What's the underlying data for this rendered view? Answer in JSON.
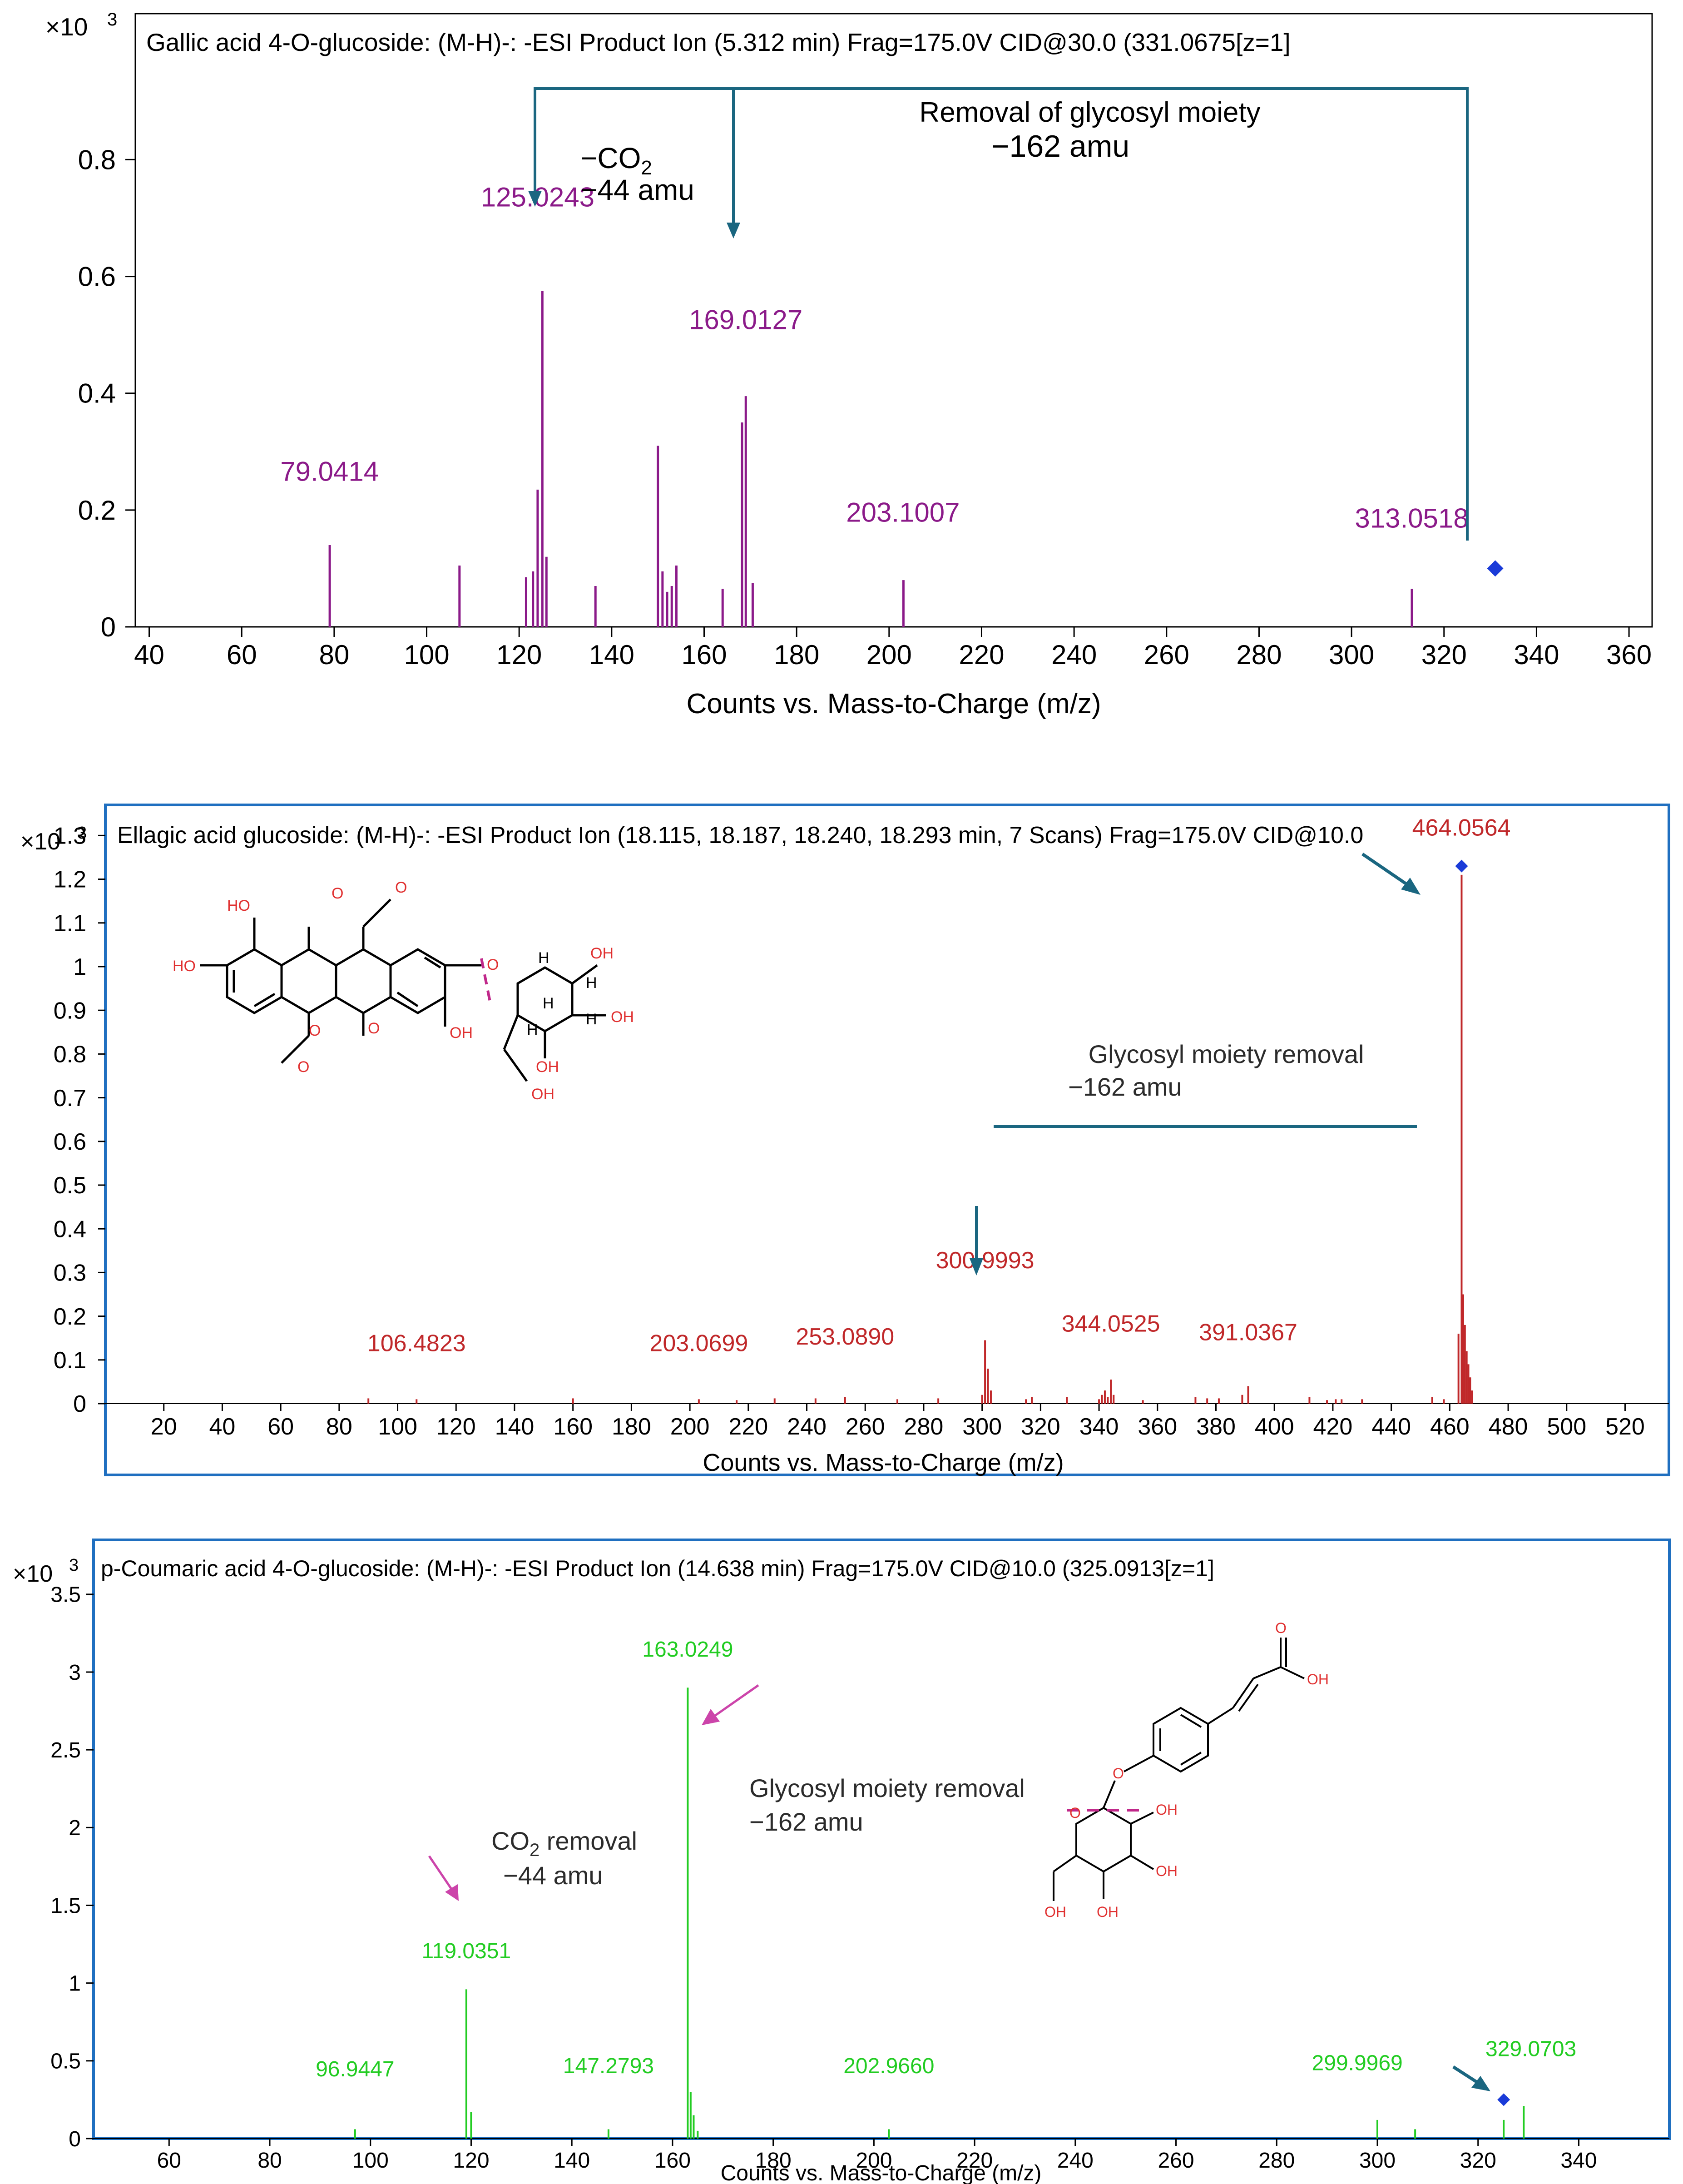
{
  "chart_data": [
    {
      "type": "bar",
      "title": "Gallic acid 4-O-glucoside: (M-H)-: -ESI Product Ion (5.312 min) Frag=175.0V CID@30.0 (331.0675[z=1]",
      "xlabel": "Counts vs. Mass-to-Charge (m/z)",
      "ylabel_multiplier": "×10",
      "ylabel_exp": "3",
      "xlim": [
        37,
        365
      ],
      "ylim": [
        0,
        1.05
      ],
      "xticks": [
        40,
        60,
        80,
        100,
        120,
        140,
        160,
        180,
        200,
        220,
        240,
        260,
        280,
        300,
        320,
        340,
        360
      ],
      "yticks": [
        0,
        0.2,
        0.4,
        0.6,
        0.8
      ],
      "ytick_labels": [
        "0",
        "0.2",
        "0.4",
        "0.6",
        "0.8"
      ],
      "peak_color": "#8b1a89",
      "arrow_color": "#1a6680",
      "peaks": [
        {
          "mz": 79.04,
          "intensity": 0.14
        },
        {
          "mz": 107.1,
          "intensity": 0.105
        },
        {
          "mz": 121.5,
          "intensity": 0.085
        },
        {
          "mz": 123.0,
          "intensity": 0.095
        },
        {
          "mz": 124.0,
          "intensity": 0.235
        },
        {
          "mz": 125.02,
          "intensity": 0.575
        },
        {
          "mz": 125.9,
          "intensity": 0.12
        },
        {
          "mz": 136.5,
          "intensity": 0.07
        },
        {
          "mz": 150.0,
          "intensity": 0.31
        },
        {
          "mz": 151.0,
          "intensity": 0.095
        },
        {
          "mz": 152.0,
          "intensity": 0.06
        },
        {
          "mz": 153.0,
          "intensity": 0.07
        },
        {
          "mz": 154.0,
          "intensity": 0.105
        },
        {
          "mz": 164.0,
          "intensity": 0.065
        },
        {
          "mz": 168.2,
          "intensity": 0.35
        },
        {
          "mz": 169.01,
          "intensity": 0.395
        },
        {
          "mz": 170.5,
          "intensity": 0.075
        },
        {
          "mz": 203.1,
          "intensity": 0.08
        },
        {
          "mz": 313.05,
          "intensity": 0.065
        }
      ],
      "labels": [
        {
          "text": "125.0243",
          "mz": 124.0,
          "intensity": 0.72
        },
        {
          "text": "169.0127",
          "mz": 169.0,
          "intensity": 0.51
        },
        {
          "text": "79.0414",
          "mz": 79.0,
          "intensity": 0.25
        },
        {
          "text": "203.1007",
          "mz": 203.0,
          "intensity": 0.18
        },
        {
          "text": "313.0518",
          "mz": 313.0,
          "intensity": 0.17
        }
      ],
      "precursor": {
        "mz": 331.07,
        "intensity": 0.1
      },
      "annotations": {
        "glycosyl_line1": "Removal of glycosyl moiety",
        "glycosyl_line2": "−162 amu",
        "co2_line1": "−CO",
        "co2_sub": "2",
        "co2_line2": "−44 amu"
      }
    },
    {
      "type": "bar",
      "title": "Ellagic acid glucoside: (M-H)-: -ESI Product Ion (18.115, 18.187, 18.240, 18.293      min, 7 Scans) Frag=175.0V CID@10.0",
      "xlabel": "Counts vs. Mass-to-Charge (m/z)",
      "ylabel_multiplier": "×10",
      "ylabel_exp": "3",
      "xlim": [
        0,
        535
      ],
      "ylim": [
        0,
        1.37
      ],
      "xticks": [
        20,
        40,
        60,
        80,
        100,
        120,
        140,
        160,
        180,
        200,
        220,
        240,
        260,
        280,
        300,
        320,
        340,
        360,
        380,
        400,
        420,
        440,
        460,
        480,
        500,
        520
      ],
      "yticks": [
        0,
        0.1,
        0.2,
        0.3,
        0.4,
        0.5,
        0.6,
        0.7,
        0.8,
        0.9,
        1,
        1.1,
        1.2,
        1.3
      ],
      "ytick_labels": [
        "0",
        "0.1",
        "0.2",
        "0.3",
        "0.4",
        "0.5",
        "0.6",
        "0.7",
        "0.8",
        "0.9",
        "1",
        "1.1",
        "1.2",
        "1.3"
      ],
      "peak_color": "#c0282a",
      "arrow_color": "#1a6680",
      "peaks": [
        {
          "mz": 90.0,
          "intensity": 0.012
        },
        {
          "mz": 106.48,
          "intensity": 0.01
        },
        {
          "mz": 160.0,
          "intensity": 0.012
        },
        {
          "mz": 203.07,
          "intensity": 0.01
        },
        {
          "mz": 216.0,
          "intensity": 0.008
        },
        {
          "mz": 229.0,
          "intensity": 0.012
        },
        {
          "mz": 243.0,
          "intensity": 0.012
        },
        {
          "mz": 253.09,
          "intensity": 0.015
        },
        {
          "mz": 271.0,
          "intensity": 0.01
        },
        {
          "mz": 285.0,
          "intensity": 0.012
        },
        {
          "mz": 300.0,
          "intensity": 0.02
        },
        {
          "mz": 301.0,
          "intensity": 0.145
        },
        {
          "mz": 302.0,
          "intensity": 0.08
        },
        {
          "mz": 303.0,
          "intensity": 0.03
        },
        {
          "mz": 315.0,
          "intensity": 0.01
        },
        {
          "mz": 317.0,
          "intensity": 0.015
        },
        {
          "mz": 329.0,
          "intensity": 0.015
        },
        {
          "mz": 340.0,
          "intensity": 0.01
        },
        {
          "mz": 341.0,
          "intensity": 0.02
        },
        {
          "mz": 342.0,
          "intensity": 0.03
        },
        {
          "mz": 343.0,
          "intensity": 0.015
        },
        {
          "mz": 344.05,
          "intensity": 0.055
        },
        {
          "mz": 345.0,
          "intensity": 0.02
        },
        {
          "mz": 355.0,
          "intensity": 0.008
        },
        {
          "mz": 373.0,
          "intensity": 0.015
        },
        {
          "mz": 377.0,
          "intensity": 0.012
        },
        {
          "mz": 381.0,
          "intensity": 0.012
        },
        {
          "mz": 389.0,
          "intensity": 0.02
        },
        {
          "mz": 391.04,
          "intensity": 0.04
        },
        {
          "mz": 412.0,
          "intensity": 0.015
        },
        {
          "mz": 418.0,
          "intensity": 0.008
        },
        {
          "mz": 421.0,
          "intensity": 0.01
        },
        {
          "mz": 423.0,
          "intensity": 0.01
        },
        {
          "mz": 430.0,
          "intensity": 0.01
        },
        {
          "mz": 454.0,
          "intensity": 0.015
        },
        {
          "mz": 458.0,
          "intensity": 0.01
        },
        {
          "mz": 463.0,
          "intensity": 0.16
        },
        {
          "mz": 464.06,
          "intensity": 1.21
        },
        {
          "mz": 464.6,
          "intensity": 0.25
        },
        {
          "mz": 465.2,
          "intensity": 0.18
        },
        {
          "mz": 465.8,
          "intensity": 0.12
        },
        {
          "mz": 466.4,
          "intensity": 0.09
        },
        {
          "mz": 467.0,
          "intensity": 0.06
        },
        {
          "mz": 467.6,
          "intensity": 0.03
        }
      ],
      "labels": [
        {
          "text": "464.0564",
          "mz": 464.0,
          "intensity": 1.3
        },
        {
          "text": "300.9993",
          "mz": 301.0,
          "intensity": 0.31
        },
        {
          "text": "106.4823",
          "mz": 106.48,
          "intensity": 0.12
        },
        {
          "text": "203.0699",
          "mz": 203.07,
          "intensity": 0.12
        },
        {
          "text": "253.0890",
          "mz": 253.09,
          "intensity": 0.135
        },
        {
          "text": "344.0525",
          "mz": 344.05,
          "intensity": 0.165
        },
        {
          "text": "391.0367",
          "mz": 391.04,
          "intensity": 0.145
        }
      ],
      "precursor": {
        "mz": 464.06,
        "intensity": 1.23
      },
      "annotations": {
        "glycosyl_line1": "Glycosyl  moiety removal",
        "glycosyl_line2": "−162 amu"
      },
      "structure_labels": [
        "HO",
        "HO",
        "O",
        "O",
        "OH",
        "O",
        "O",
        "O",
        "O",
        "H",
        "OH",
        "H",
        "OH",
        "H",
        "H",
        "H",
        "OH",
        "OH"
      ]
    },
    {
      "type": "bar",
      "title": "p-Coumaric acid 4-O-glucoside:  (M-H)-: -ESI  Product  Ion  (14.638 min) Frag=175.0V  CID@10.0 (325.0913[z=1]",
      "xlabel": "Counts vs. Mass-to-Charge (m/z)",
      "ylabel_multiplier": "×10",
      "ylabel_exp": "3",
      "xlim": [
        45,
        358
      ],
      "ylim": [
        0,
        3.85
      ],
      "xticks": [
        60,
        80,
        100,
        120,
        140,
        160,
        180,
        200,
        220,
        240,
        260,
        280,
        300,
        320,
        340
      ],
      "yticks": [
        0,
        0.5,
        1,
        1.5,
        2,
        2.5,
        3,
        3.5
      ],
      "ytick_labels": [
        "0",
        "0.5",
        "1",
        "1.5",
        "2",
        "2.5",
        "3",
        "3.5"
      ],
      "peak_color": "#22cc22",
      "arrow_color": "#cc44aa",
      "peaks": [
        {
          "mz": 96.94,
          "intensity": 0.06
        },
        {
          "mz": 119.04,
          "intensity": 0.96
        },
        {
          "mz": 120.0,
          "intensity": 0.17
        },
        {
          "mz": 147.28,
          "intensity": 0.06
        },
        {
          "mz": 163.02,
          "intensity": 2.9
        },
        {
          "mz": 163.6,
          "intensity": 0.3
        },
        {
          "mz": 164.2,
          "intensity": 0.15
        },
        {
          "mz": 165.0,
          "intensity": 0.05
        },
        {
          "mz": 202.97,
          "intensity": 0.06
        },
        {
          "mz": 300.0,
          "intensity": 0.12
        },
        {
          "mz": 307.5,
          "intensity": 0.06
        },
        {
          "mz": 325.09,
          "intensity": 0.12
        },
        {
          "mz": 329.07,
          "intensity": 0.21
        }
      ],
      "labels": [
        {
          "text": "163.0249",
          "mz": 163.02,
          "intensity": 3.1
        },
        {
          "text": "119.0351",
          "mz": 119.04,
          "intensity": 1.16
        },
        {
          "text": "96.9447",
          "mz": 96.94,
          "intensity": 0.4
        },
        {
          "text": "147.2793",
          "mz": 147.28,
          "intensity": 0.42
        },
        {
          "text": "202.9660",
          "mz": 202.97,
          "intensity": 0.42
        },
        {
          "text": "299.9969",
          "mz": 296.0,
          "intensity": 0.44
        },
        {
          "text": "329.0703",
          "mz": 330.5,
          "intensity": 0.53
        }
      ],
      "precursor": {
        "mz": 325.09,
        "intensity": 0.25
      },
      "annotations": {
        "glycosyl_line1": "Glycosyl  moiety removal",
        "glycosyl_line2": "−162 amu",
        "co2_line1a": "CO",
        "co2_sub": "2",
        "co2_line1b": " removal",
        "co2_line2": "−44 amu"
      },
      "structure_labels": [
        "O",
        "OH",
        "O",
        "O",
        "OH",
        "OH",
        "OH",
        "OH"
      ]
    }
  ]
}
